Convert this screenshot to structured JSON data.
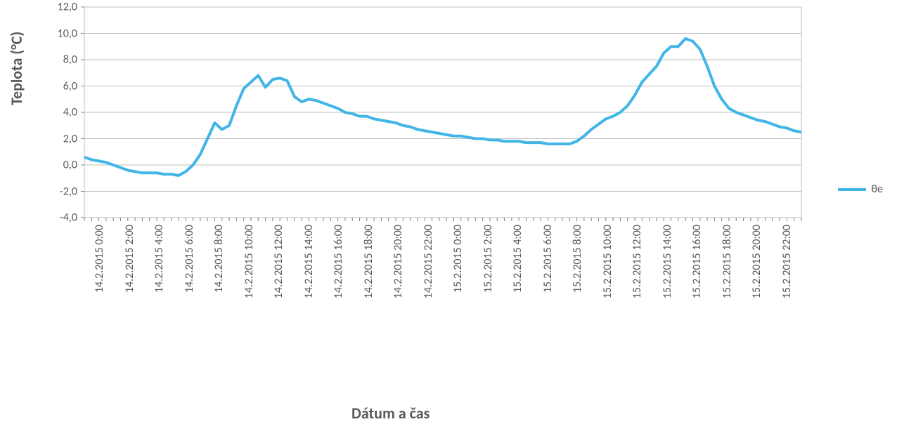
{
  "chart": {
    "type": "line",
    "y_axis_title": "Teplota (°C)",
    "x_axis_title": "Dátum a čas",
    "background_color": "#ffffff",
    "grid_color": "#bfbfbf",
    "axis_color": "#808080",
    "text_color": "#595959",
    "title_fontsize": 22,
    "label_fontsize": 16,
    "ylim": [
      -4,
      12
    ],
    "ytick_step": 2,
    "yticks": [
      "-4,0",
      "-2,0",
      "0,0",
      "2,0",
      "4,0",
      "6,0",
      "8,0",
      "10,0",
      "12,0"
    ],
    "ytick_values": [
      -4,
      -2,
      0,
      2,
      4,
      6,
      8,
      10,
      12
    ],
    "x_labels": [
      "14.2.2015 0:00",
      "14.2.2015 2:00",
      "14.2.2015 4:00",
      "14.2.2015 6:00",
      "14.2.2015 8:00",
      "14.2.2015 10:00",
      "14.2.2015 12:00",
      "14.2.2015 14:00",
      "14.2.2015 16:00",
      "14.2.2015 18:00",
      "14.2.2015 20:00",
      "14.2.2015 22:00",
      "15.2.2015 0:00",
      "15.2.2015 2:00",
      "15.2.2015 4:00",
      "15.2.2015 6:00",
      "15.2.2015 8:00",
      "15.2.2015 10:00",
      "15.2.2015 12:00",
      "15.2.2015 14:00",
      "15.2.2015 16:00",
      "15.2.2015 18:00",
      "15.2.2015 20:00",
      "15.2.2015 22:00"
    ],
    "series": [
      {
        "name": "θe",
        "color": "#41b6e6",
        "line_width": 4,
        "data": [
          0.6,
          0.4,
          0.3,
          0.2,
          0.0,
          -0.2,
          -0.4,
          -0.5,
          -0.6,
          -0.6,
          -0.6,
          -0.7,
          -0.7,
          -0.8,
          -0.5,
          0.0,
          0.8,
          2.0,
          3.2,
          2.7,
          3.0,
          4.5,
          5.8,
          6.3,
          6.8,
          5.9,
          6.5,
          6.6,
          6.4,
          5.2,
          4.8,
          5.0,
          4.9,
          4.7,
          4.5,
          4.3,
          4.0,
          3.9,
          3.7,
          3.7,
          3.5,
          3.4,
          3.3,
          3.2,
          3.0,
          2.9,
          2.7,
          2.6,
          2.5,
          2.4,
          2.3,
          2.2,
          2.2,
          2.1,
          2.0,
          2.0,
          1.9,
          1.9,
          1.8,
          1.8,
          1.8,
          1.7,
          1.7,
          1.7,
          1.6,
          1.6,
          1.6,
          1.6,
          1.8,
          2.2,
          2.7,
          3.1,
          3.5,
          3.7,
          4.0,
          4.5,
          5.3,
          6.3,
          6.9,
          7.5,
          8.5,
          9.0,
          9.0,
          9.6,
          9.4,
          8.8,
          7.5,
          6.0,
          5.0,
          4.3,
          4.0,
          3.8,
          3.6,
          3.4,
          3.3,
          3.1,
          2.9,
          2.8,
          2.6,
          2.5
        ]
      }
    ],
    "legend": {
      "position": "right",
      "label": "θe"
    }
  }
}
